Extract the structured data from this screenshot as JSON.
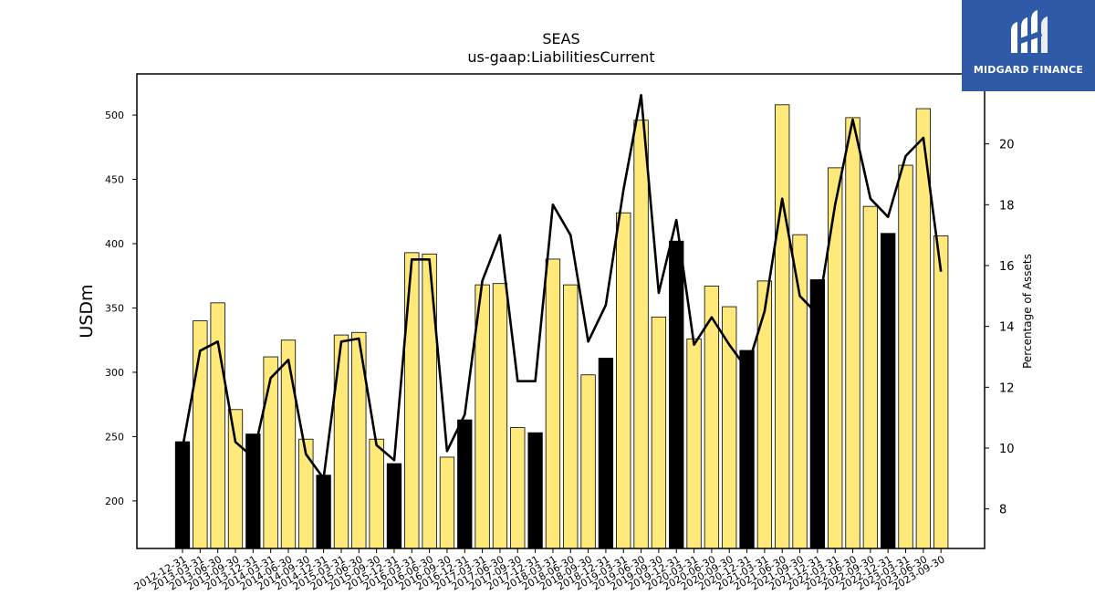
{
  "chart_data": {
    "type": "bar",
    "title": "SEAS",
    "subtitle": "us-gaap:LiabilitiesCurrent",
    "ylabel": "USDm",
    "y2label": "Percentage of Assets",
    "ylim": [
      163,
      532
    ],
    "y2lim": [
      6.7,
      22.3
    ],
    "yticks": [
      200,
      250,
      300,
      350,
      400,
      450,
      500
    ],
    "y2ticks": [
      8,
      10,
      12,
      14,
      16,
      18,
      20
    ],
    "categories": [
      "2012-12-31",
      "2013-03-31",
      "2013-06-30",
      "2013-09-30",
      "2013-12-31",
      "2014-03-31",
      "2014-06-30",
      "2014-09-30",
      "2014-12-31",
      "2015-03-31",
      "2015-06-30",
      "2015-09-30",
      "2015-12-31",
      "2016-03-31",
      "2016-06-30",
      "2016-09-30",
      "2016-12-31",
      "2017-03-31",
      "2017-06-30",
      "2017-09-30",
      "2017-12-31",
      "2018-03-31",
      "2018-06-30",
      "2018-09-30",
      "2018-12-31",
      "2019-03-31",
      "2019-06-30",
      "2019-09-30",
      "2019-12-31",
      "2020-03-31",
      "2020-06-30",
      "2020-09-30",
      "2020-12-31",
      "2021-03-31",
      "2021-06-30",
      "2021-09-30",
      "2021-12-31",
      "2022-03-31",
      "2022-06-30",
      "2022-09-30",
      "2022-12-31",
      "2023-03-31",
      "2023-06-30",
      "2023-09-30"
    ],
    "series": [
      {
        "kind": "bar",
        "values": [
          246,
          340,
          354,
          271,
          252,
          312,
          325,
          248,
          220,
          329,
          331,
          248,
          229,
          393,
          392,
          234,
          263,
          368,
          369,
          257,
          253,
          388,
          368,
          298,
          311,
          424,
          496,
          343,
          402,
          326,
          367,
          351,
          317,
          371,
          508,
          407,
          372,
          459,
          498,
          429,
          408,
          461,
          505,
          406
        ],
        "highlight": [
          true,
          false,
          false,
          false,
          true,
          false,
          false,
          false,
          true,
          false,
          false,
          false,
          true,
          false,
          false,
          false,
          true,
          false,
          false,
          false,
          true,
          false,
          false,
          false,
          true,
          false,
          false,
          false,
          true,
          false,
          false,
          false,
          true,
          false,
          false,
          false,
          true,
          false,
          false,
          false,
          true,
          false,
          false,
          false
        ]
      },
      {
        "kind": "line",
        "axis": "right",
        "values": [
          10.0,
          13.2,
          13.5,
          10.2,
          9.7,
          12.3,
          12.9,
          9.8,
          9.0,
          13.5,
          13.6,
          10.1,
          9.6,
          16.2,
          16.2,
          9.9,
          11.1,
          15.5,
          17.0,
          12.2,
          12.2,
          18.0,
          17.0,
          13.5,
          14.7,
          18.5,
          21.6,
          15.1,
          17.5,
          13.4,
          14.3,
          13.4,
          12.6,
          14.5,
          18.2,
          15.0,
          14.4,
          18.0,
          20.8,
          18.2,
          17.6,
          19.6,
          20.2,
          15.8
        ]
      }
    ],
    "colors": {
      "bar": "#ffe97a",
      "bar_highlight": "#000000",
      "line": "#000000"
    }
  },
  "logo": {
    "text": "MIDGARD FINANCE",
    "background": "#2f5aa8"
  }
}
